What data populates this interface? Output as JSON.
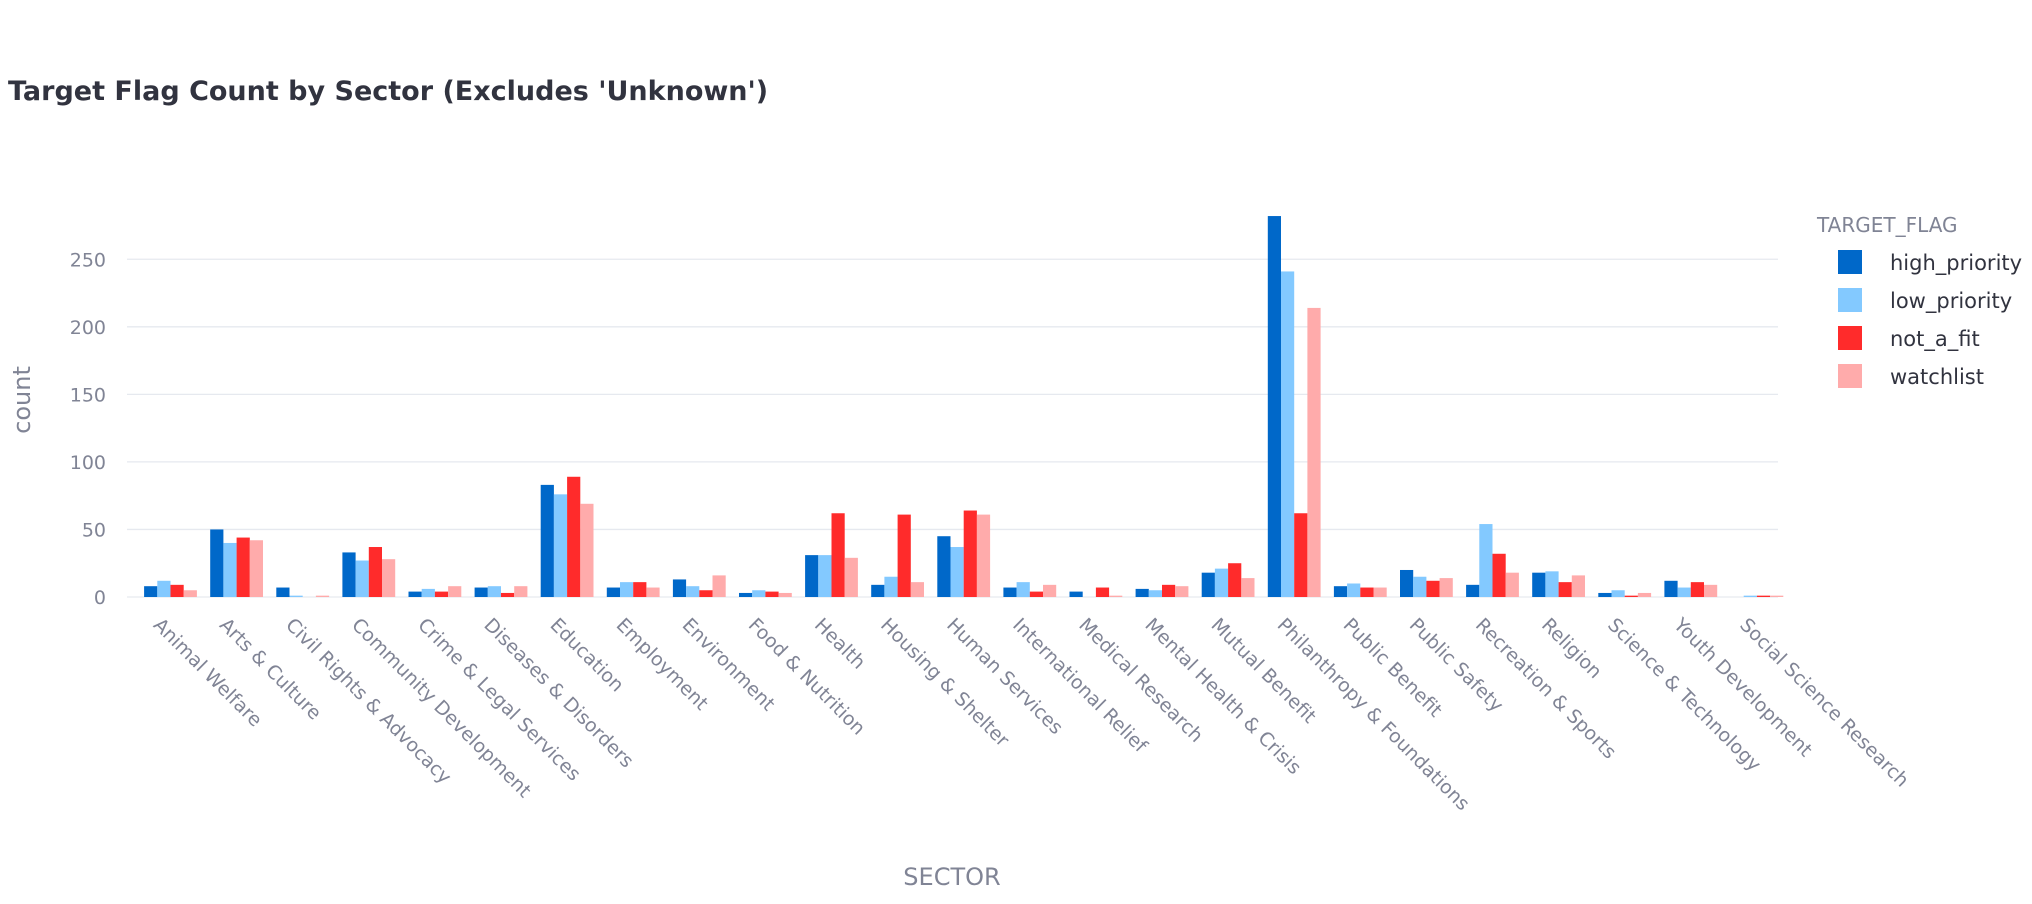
{
  "chart_data": {
    "type": "bar",
    "title": "Target Flag Count by Sector (Excludes 'Unknown')",
    "xlabel": "SECTOR",
    "ylabel": "count",
    "ylim": [
      0,
      285
    ],
    "yticks": [
      0,
      50,
      100,
      150,
      200,
      250
    ],
    "grid": true,
    "legend": {
      "title": "TARGET_FLAG",
      "placement": "right"
    },
    "categories": [
      "Animal Welfare",
      "Arts & Culture",
      "Civil Rights & Advocacy",
      "Community Development",
      "Crime & Legal Services",
      "Diseases & Disorders",
      "Education",
      "Employment",
      "Environment",
      "Food & Nutrition",
      "Health",
      "Housing & Shelter",
      "Human Services",
      "International Relief",
      "Medical Research",
      "Mental Health & Crisis",
      "Mutual Benefit",
      "Philanthropy & Foundations",
      "Public Benefit",
      "Public Safety",
      "Recreation & Sports",
      "Religion",
      "Science & Technology",
      "Youth Development",
      "Social Science Research"
    ],
    "series": [
      {
        "name": "high_priority",
        "color": "#0068c9",
        "values": [
          8,
          50,
          7,
          33,
          4,
          7,
          83,
          7,
          13,
          3,
          31,
          9,
          45,
          7,
          4,
          6,
          18,
          282,
          8,
          20,
          9,
          18,
          3,
          12,
          0
        ]
      },
      {
        "name": "low_priority",
        "color": "#83c9ff",
        "values": [
          12,
          40,
          1,
          27,
          6,
          8,
          76,
          11,
          8,
          5,
          31,
          15,
          37,
          11,
          0,
          5,
          21,
          241,
          10,
          15,
          54,
          19,
          5,
          7,
          1
        ]
      },
      {
        "name": "not_a_fit",
        "color": "#ff2b2b",
        "values": [
          9,
          44,
          0,
          37,
          4,
          3,
          89,
          11,
          5,
          4,
          62,
          61,
          64,
          4,
          7,
          9,
          25,
          62,
          7,
          12,
          32,
          11,
          1,
          11,
          1
        ]
      },
      {
        "name": "watchlist",
        "color": "#ffabab",
        "values": [
          5,
          42,
          1,
          28,
          8,
          8,
          69,
          7,
          16,
          3,
          29,
          11,
          61,
          9,
          1,
          8,
          14,
          214,
          7,
          14,
          18,
          16,
          3,
          9,
          1
        ]
      }
    ]
  }
}
